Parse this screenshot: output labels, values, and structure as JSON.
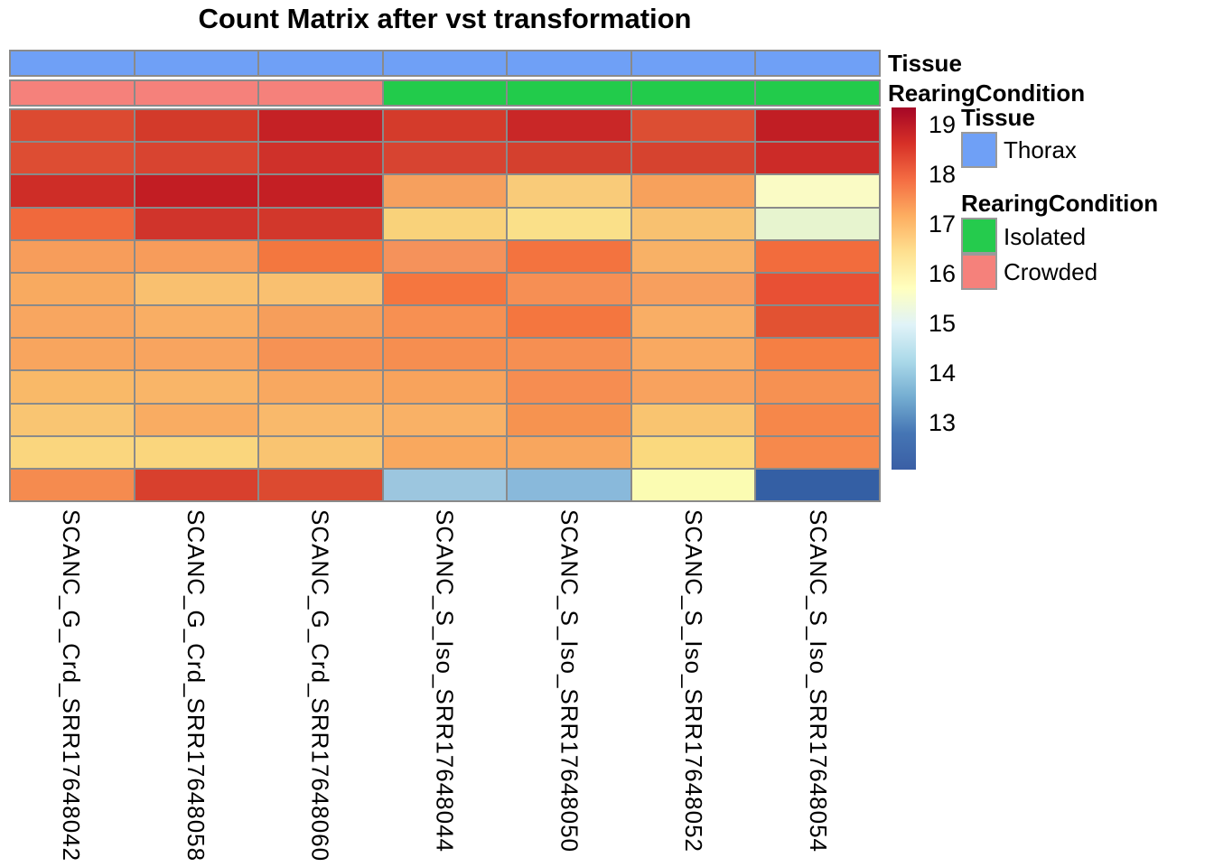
{
  "title": "Count Matrix after vst transformation",
  "annotation_rows": [
    {
      "label": "Tissue",
      "cells": [
        "#6FA0F6",
        "#6FA0F6",
        "#6FA0F6",
        "#6FA0F6",
        "#6FA0F6",
        "#6FA0F6",
        "#6FA0F6"
      ]
    },
    {
      "label": "RearingCondition",
      "cells": [
        "#F5817B",
        "#F5817B",
        "#F5817B",
        "#22CB4B",
        "#22CB4B",
        "#22CB4B",
        "#22CB4B"
      ]
    }
  ],
  "legend": {
    "tissue": {
      "header": "Tissue",
      "items": [
        {
          "label": "Thorax",
          "color": "#6FA0F6"
        }
      ]
    },
    "rearing": {
      "header": "RearingCondition",
      "items": [
        {
          "label": "Isolated",
          "color": "#25CB4D"
        },
        {
          "label": "Crowded",
          "color": "#F5817B"
        }
      ]
    }
  },
  "chart_data": {
    "type": "heatmap",
    "title": "Count Matrix after vst transformation",
    "columns": [
      "SCANC_G_Crd_SRR17648042",
      "SCANC_G_Crd_SRR17648058",
      "SCANC_G_Crd_SRR17648060",
      "SCANC_S_Iso_SRR17648044",
      "SCANC_S_Iso_SRR17648050",
      "SCANC_S_Iso_SRR17648052",
      "SCANC_S_Iso_SRR17648054"
    ],
    "column_annotations": {
      "Tissue": [
        "Thorax",
        "Thorax",
        "Thorax",
        "Thorax",
        "Thorax",
        "Thorax",
        "Thorax"
      ],
      "RearingCondition": [
        "Crowded",
        "Crowded",
        "Crowded",
        "Isolated",
        "Isolated",
        "Isolated",
        "Isolated"
      ]
    },
    "n_rows": 12,
    "row_labels_shown": false,
    "cell_colors": [
      [
        "#DC4A31",
        "#D33A2A",
        "#C52125",
        "#D43B2B",
        "#C92727",
        "#DC4E33",
        "#C11E24"
      ],
      [
        "#DD4D33",
        "#D84430",
        "#CF312A",
        "#D74431",
        "#D4402E",
        "#D6432F",
        "#CC2B28"
      ],
      [
        "#CE2D27",
        "#C21D23",
        "#C41F24",
        "#F6A05E",
        "#F9CB79",
        "#F7A15C",
        "#FAFBC5"
      ],
      [
        "#F0693C",
        "#D0342B",
        "#D2372B",
        "#F9D27A",
        "#FAE089",
        "#F8C170",
        "#E7F4CF"
      ],
      [
        "#F79D5B",
        "#F79C5B",
        "#F3773F",
        "#F5925B",
        "#F3733F",
        "#F8B166",
        "#F26C3D"
      ],
      [
        "#F8AA60",
        "#F9C06F",
        "#F9C070",
        "#F5763F",
        "#F68F54",
        "#F79F5E",
        "#E85034"
      ],
      [
        "#F8A660",
        "#F9AE64",
        "#F69E5B",
        "#F79052",
        "#F4763F",
        "#F9AE65",
        "#E25232"
      ],
      [
        "#F8A55E",
        "#F8A45F",
        "#F69254",
        "#F68E50",
        "#F68F52",
        "#F9A961",
        "#F57F44"
      ],
      [
        "#F9B968",
        "#F9B568",
        "#F8A860",
        "#F8A35C",
        "#F68D51",
        "#F8A25E",
        "#F69152"
      ],
      [
        "#F9C572",
        "#F9AC62",
        "#F9B96B",
        "#F9B166",
        "#F69350",
        "#F9C470",
        "#F6874A"
      ],
      [
        "#FAD67E",
        "#FAD67D",
        "#F9C471",
        "#F9A85E",
        "#F8A65E",
        "#FAD97E",
        "#F6894C"
      ],
      [
        "#F58B4F",
        "#D8402D",
        "#DC4A30",
        "#9CC6DF",
        "#89B9DB",
        "#FBFCB2",
        "#345FA4"
      ]
    ],
    "cell_values_approx": [
      [
        18.4,
        18.5,
        18.9,
        18.5,
        18.8,
        18.4,
        19.0
      ],
      [
        18.4,
        18.5,
        18.7,
        18.5,
        18.5,
        18.5,
        18.7
      ],
      [
        18.7,
        19.0,
        18.9,
        17.3,
        16.8,
        17.3,
        15.8
      ],
      [
        17.9,
        18.6,
        18.6,
        16.7,
        16.5,
        16.9,
        15.4
      ],
      [
        17.3,
        17.3,
        17.8,
        17.5,
        17.8,
        17.1,
        17.9
      ],
      [
        17.2,
        16.9,
        16.9,
        17.8,
        17.5,
        17.3,
        18.2
      ],
      [
        17.3,
        17.2,
        17.3,
        17.5,
        17.8,
        17.2,
        18.3
      ],
      [
        17.3,
        17.3,
        17.5,
        17.5,
        17.5,
        17.2,
        17.7
      ],
      [
        17.0,
        17.1,
        17.2,
        17.3,
        17.5,
        17.3,
        17.5
      ],
      [
        16.9,
        17.2,
        17.0,
        17.1,
        17.5,
        16.9,
        17.6
      ],
      [
        16.6,
        16.6,
        16.9,
        17.2,
        17.3,
        16.6,
        17.6
      ],
      [
        17.6,
        18.5,
        18.4,
        13.9,
        13.7,
        15.8,
        12.4
      ]
    ],
    "colorbar": {
      "ticks": [
        "19",
        "18",
        "17",
        "16",
        "15",
        "14",
        "13"
      ],
      "range_approx": [
        12.0,
        19.3
      ],
      "palette": "RdYlBu reversed",
      "gradient_colors": [
        "#A50626",
        "#D73027",
        "#F46D43",
        "#FDAE61",
        "#FEE090",
        "#FFFFBF",
        "#E0F3F8",
        "#ABD9E9",
        "#74ADD1",
        "#4575B4",
        "#3A5FA5"
      ]
    },
    "legend_position": "right",
    "grid_color": "#8a8a8a"
  }
}
